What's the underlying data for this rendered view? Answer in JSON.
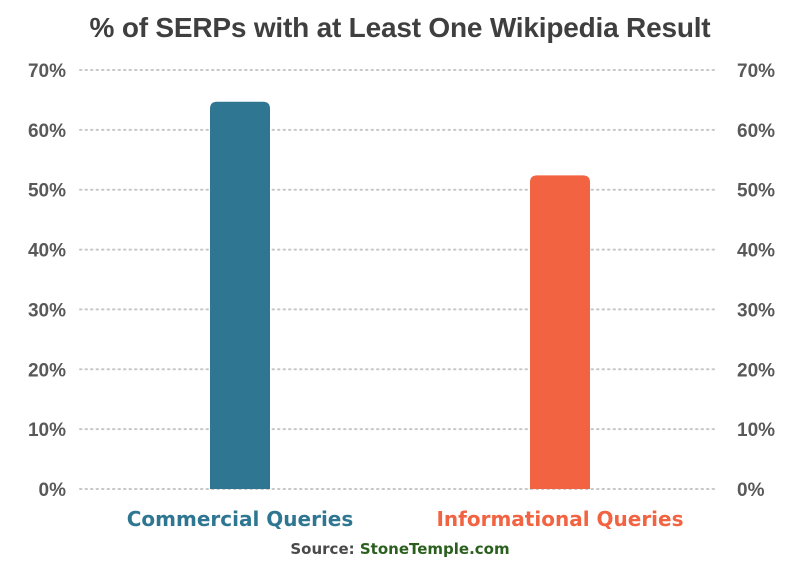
{
  "chart_data": {
    "type": "bar",
    "title": "% of SERPs with at Least One Wikipedia Result",
    "categories": [
      "Commercial Queries",
      "Informational Queries"
    ],
    "values": [
      64.7,
      52.4
    ],
    "bar_colors": [
      "#2e7691",
      "#f26341"
    ],
    "ylim": [
      0,
      70
    ],
    "yticks": [
      "0%",
      "10%",
      "20%",
      "30%",
      "40%",
      "50%",
      "60%",
      "70%"
    ],
    "ytick_values": [
      0,
      10,
      20,
      30,
      40,
      50,
      60,
      70
    ],
    "y_axis_sides": "left-and-right",
    "grid": true,
    "xlabel": "",
    "ylabel": ""
  },
  "source": {
    "prefix": "Source: ",
    "brand": "StoneTemple.com",
    "brand_color": "#2b5f1e"
  }
}
